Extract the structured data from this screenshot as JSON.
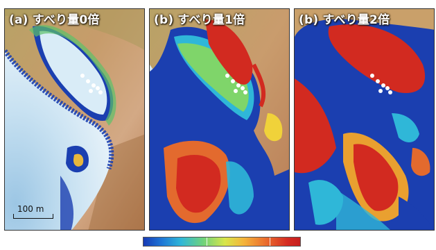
{
  "panels": [
    {
      "label": "(a) すべり量0倍"
    },
    {
      "label": "(b) すべり量1倍"
    },
    {
      "label": "(b) すべり量2倍"
    }
  ],
  "scale_bar": {
    "label": "100 m"
  },
  "colors": {
    "water_light": "#d7eaf6",
    "water_deep": "#a9cde6",
    "land_brown": "#c9a06a",
    "land_green": "#9fb45a",
    "flood_blue": "#1b3fb0",
    "flood_red": "#d22a20",
    "flood_yellow": "#f0d23a"
  },
  "colorbar": {
    "stops": [
      "#173ab5",
      "#2fb7d8",
      "#6fd27c",
      "#d8e64a",
      "#f4b43b",
      "#ea6d2e",
      "#c61f1f"
    ]
  }
}
